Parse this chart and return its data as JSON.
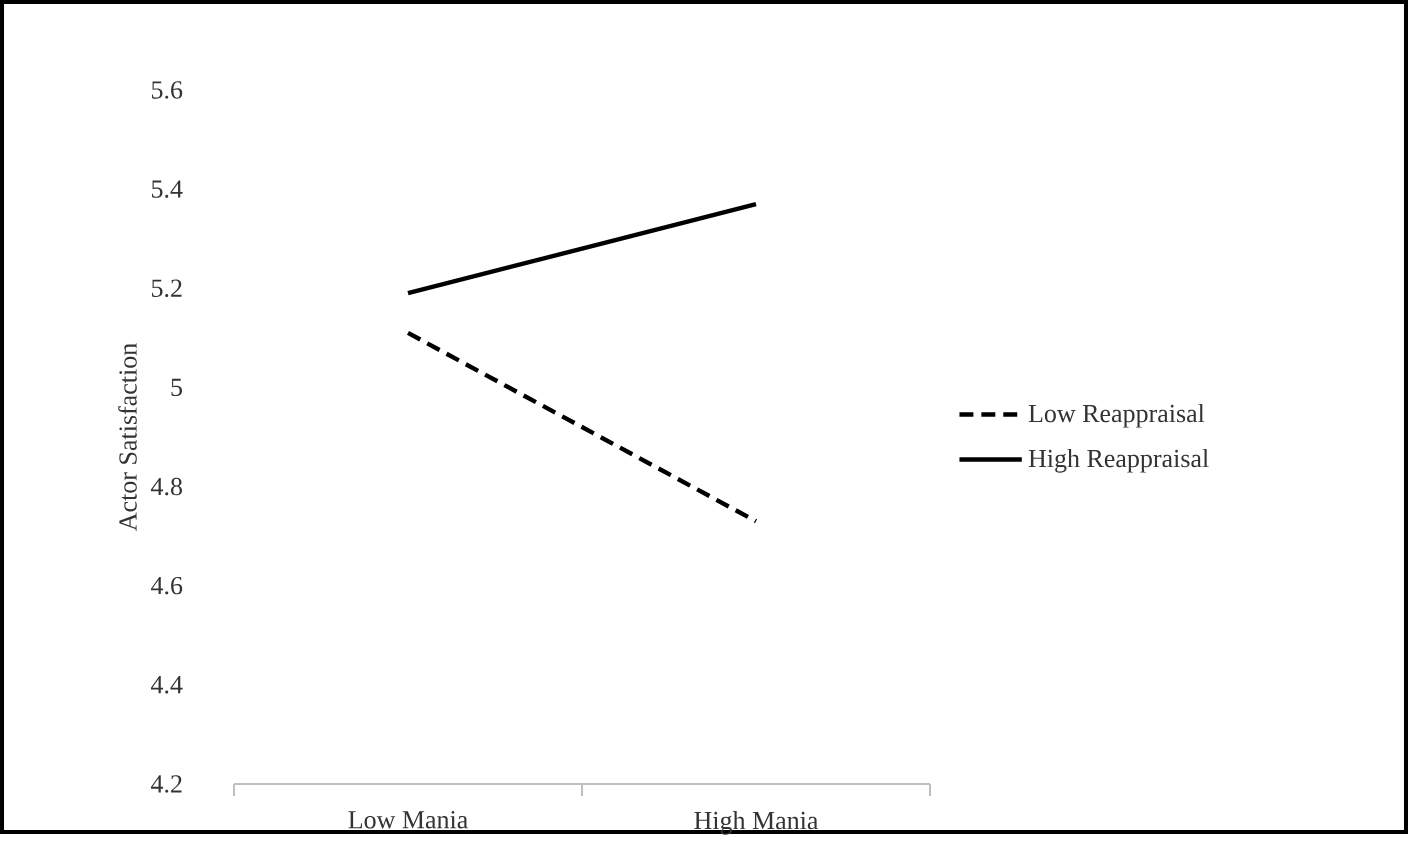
{
  "chart_data": {
    "type": "line",
    "ylabel": "Actor Satisfaction",
    "categories": [
      "Low Mania",
      "High Mania"
    ],
    "series": [
      {
        "name": "Low Reappraisal",
        "color": "#000000",
        "line_style": "dashed",
        "values": [
          5.11,
          4.73
        ]
      },
      {
        "name": "High Reappraisal",
        "color": "#000000",
        "line_style": "solid",
        "values": [
          5.19,
          5.37
        ]
      }
    ],
    "ylim": [
      4.2,
      5.6
    ],
    "yticks": [
      4.2,
      4.4,
      4.6,
      4.8,
      5,
      5.2,
      5.4,
      5.6
    ],
    "legend": "right",
    "grid": false,
    "marker": "none"
  }
}
